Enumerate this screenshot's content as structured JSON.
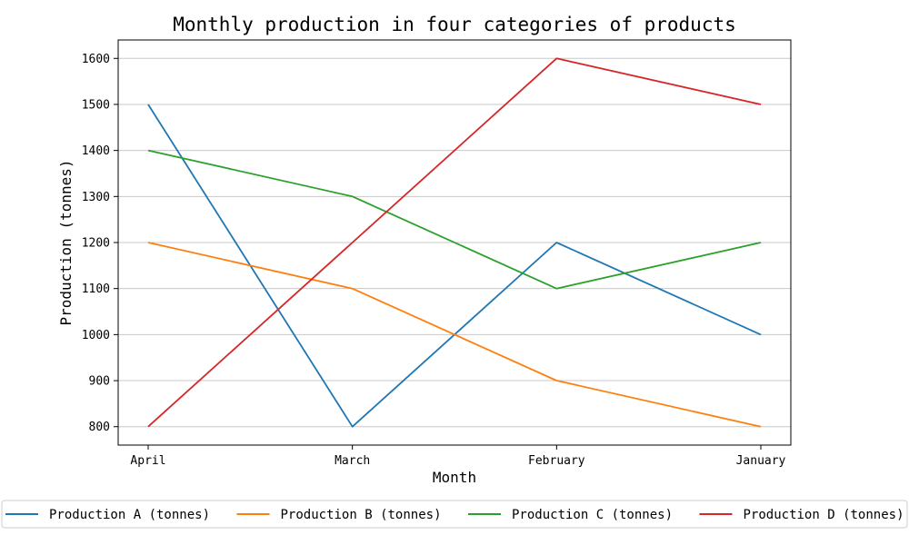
{
  "chart_data": {
    "type": "line",
    "title": "Monthly production in four categories of products",
    "xlabel": "Month",
    "ylabel": "Production (tonnes)",
    "categories": [
      "April",
      "March",
      "February",
      "January"
    ],
    "ylim": [
      760,
      1640
    ],
    "yticks": [
      800,
      900,
      1000,
      1100,
      1200,
      1300,
      1400,
      1500,
      1600
    ],
    "grid": "horizontal",
    "legend_position": "bottom",
    "series": [
      {
        "name": "Production A (tonnes)",
        "color": "#1f77b4",
        "values": [
          1500,
          800,
          1200,
          1000
        ]
      },
      {
        "name": "Production B (tonnes)",
        "color": "#ff7f0e",
        "values": [
          1200,
          1100,
          900,
          800
        ]
      },
      {
        "name": "Production C (tonnes)",
        "color": "#2ca02c",
        "values": [
          1400,
          1300,
          1100,
          1200
        ]
      },
      {
        "name": "Production D (tonnes)",
        "color": "#d62728",
        "values": [
          800,
          1200,
          1600,
          1500
        ]
      }
    ]
  }
}
